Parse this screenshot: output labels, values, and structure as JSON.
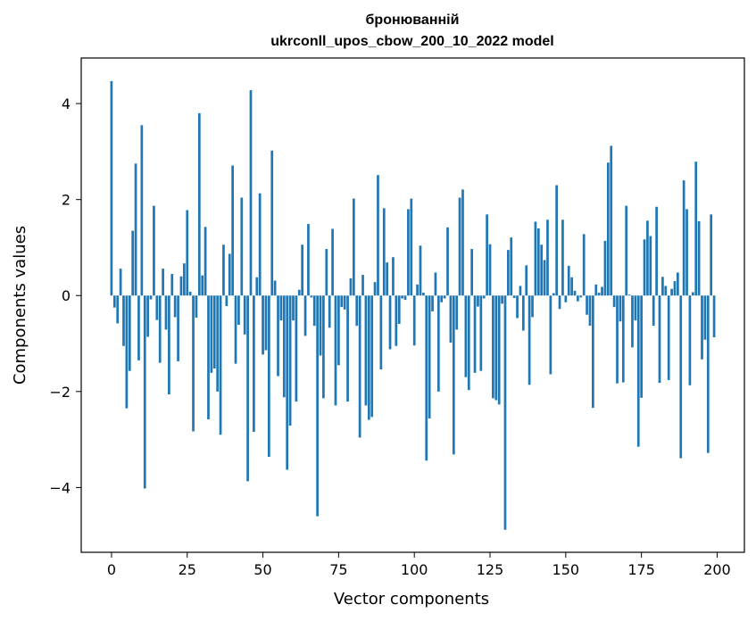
{
  "chart_data": {
    "type": "bar",
    "title_line1": "бронюванній",
    "title_line2": "ukrconll_upos_cbow_200_10_2022 model",
    "xlabel": "Vector components",
    "ylabel": "Components values",
    "xlim": [
      -10,
      209
    ],
    "ylim": [
      -5.35,
      4.95
    ],
    "xticks": [
      0,
      25,
      50,
      75,
      100,
      125,
      150,
      175,
      200
    ],
    "yticks": [
      -4,
      -2,
      0,
      2,
      4
    ],
    "ytick_labels": [
      "−4",
      "−2",
      "0",
      "2",
      "4"
    ],
    "grid": false,
    "bar_color": "#1f77b4",
    "values": [
      4.47,
      -0.25,
      -0.58,
      0.56,
      -1.05,
      -2.35,
      -1.57,
      1.35,
      2.75,
      -1.35,
      3.55,
      -4.02,
      -0.86,
      -0.08,
      1.87,
      -0.51,
      -1.4,
      0.56,
      -0.71,
      -2.06,
      0.45,
      -0.45,
      -1.37,
      0.4,
      0.67,
      1.78,
      0.08,
      -2.83,
      -0.46,
      3.8,
      0.42,
      1.43,
      -2.58,
      -1.61,
      -1.52,
      -2.0,
      -2.9,
      1.06,
      -0.22,
      0.87,
      2.71,
      -1.42,
      -0.61,
      2.04,
      -0.81,
      -3.87,
      4.28,
      -2.84,
      0.38,
      2.13,
      -1.23,
      -1.14,
      -3.36,
      3.02,
      0.31,
      -1.68,
      -0.52,
      -2.12,
      -3.63,
      -2.71,
      -0.52,
      -2.21,
      0.12,
      1.06,
      -0.84,
      1.49,
      -0.04,
      -0.63,
      -4.6,
      -1.25,
      -2.14,
      0.97,
      -0.67,
      1.39,
      -2.29,
      -1.45,
      -0.24,
      -0.29,
      -2.21,
      0.36,
      2.02,
      -0.63,
      -2.96,
      0.43,
      -2.29,
      -2.59,
      -2.53,
      0.28,
      2.51,
      -1.54,
      1.82,
      0.69,
      -1.12,
      0.8,
      -1.05,
      -0.59,
      -0.06,
      -0.09,
      1.8,
      2.02,
      -1.04,
      0.23,
      1.04,
      0.06,
      -3.44,
      -2.56,
      -0.33,
      0.48,
      -2.0,
      -0.14,
      -0.06,
      1.42,
      -0.98,
      -3.31,
      -0.71,
      2.04,
      2.21,
      -1.7,
      -1.97,
      0.97,
      -1.61,
      -0.23,
      -1.57,
      -0.06,
      1.69,
      1.07,
      -2.14,
      -2.18,
      -2.27,
      -0.17,
      -4.88,
      0.95,
      1.21,
      -0.05,
      -0.47,
      0.2,
      -0.73,
      0.63,
      -1.86,
      -0.45,
      1.54,
      1.4,
      1.06,
      0.74,
      1.58,
      -1.64,
      0.05,
      2.3,
      -0.28,
      1.58,
      -0.14,
      0.62,
      0.38,
      0.1,
      -0.12,
      -0.04,
      1.28,
      -0.4,
      -0.63,
      -2.34,
      0.23,
      0.06,
      0.18,
      1.14,
      2.77,
      3.12,
      -0.24,
      -1.83,
      -0.54,
      -1.81,
      1.87,
      0.02,
      -1.08,
      -0.52,
      -3.15,
      -2.13,
      1.17,
      1.56,
      1.24,
      -0.63,
      1.85,
      -1.82,
      0.39,
      0.2,
      -1.76,
      0.14,
      0.3,
      0.48,
      -3.39,
      2.4,
      1.8,
      -1.87,
      0.07,
      2.79,
      1.55,
      -1.33,
      -0.92,
      -3.28,
      1.69,
      -0.87
    ]
  }
}
